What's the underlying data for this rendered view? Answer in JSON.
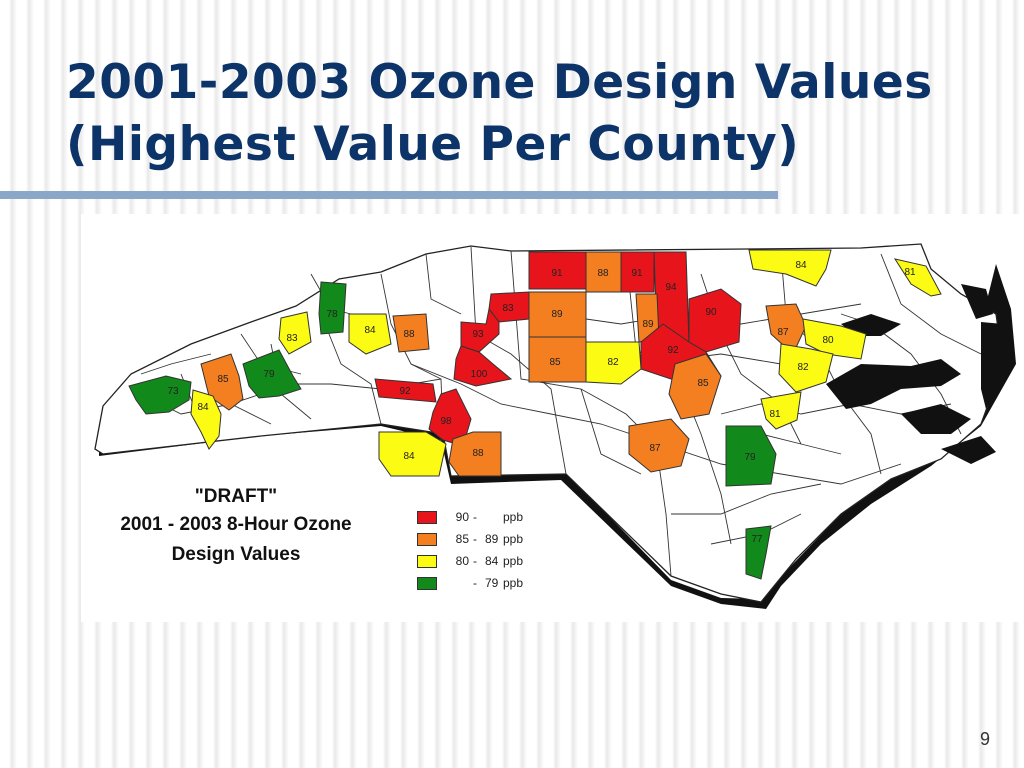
{
  "slide": {
    "title_line1": "2001-2003 Ozone Design Values",
    "title_line2": "(Highest Value Per County)",
    "page_number": "9"
  },
  "map": {
    "draft_label": "\"DRAFT\"",
    "subtitle_line1": "2001 - 2003 8-Hour Ozone",
    "subtitle_line2": "Design Values",
    "legend": [
      {
        "low": "90",
        "dash": "-",
        "high": "",
        "unit": "ppb",
        "color": "#e8141c"
      },
      {
        "low": "85",
        "dash": "-",
        "high": "89",
        "unit": "ppb",
        "color": "#f47f20"
      },
      {
        "low": "80",
        "dash": "-",
        "high": "84",
        "unit": "ppb",
        "color": "#fbfb13"
      },
      {
        "low": "",
        "dash": "-",
        "high": "79",
        "unit": "ppb",
        "color": "#118a1b"
      }
    ],
    "county_values": [
      "91",
      "88",
      "91",
      "94",
      "84",
      "81",
      "83",
      "89",
      "89",
      "90",
      "87",
      "80",
      "93",
      "92",
      "82",
      "78",
      "84",
      "88",
      "83",
      "85",
      "82",
      "100",
      "85",
      "73",
      "85",
      "79",
      "84",
      "92",
      "98",
      "81",
      "84",
      "88",
      "87",
      "79",
      "77"
    ]
  }
}
